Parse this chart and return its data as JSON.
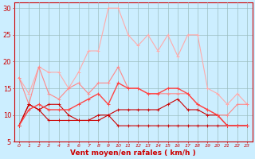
{
  "x": [
    0,
    1,
    2,
    3,
    4,
    5,
    6,
    7,
    8,
    9,
    10,
    11,
    12,
    13,
    14,
    15,
    16,
    17,
    18,
    19,
    20,
    21,
    22,
    23
  ],
  "line_rafales": [
    17,
    14,
    19,
    18,
    18,
    15,
    18,
    22,
    22,
    30,
    30,
    25,
    23,
    25,
    22,
    25,
    21,
    25,
    25,
    15,
    14,
    12,
    14,
    12
  ],
  "line_moyen1": [
    17,
    12,
    19,
    14,
    13,
    15,
    16,
    14,
    16,
    16,
    19,
    15,
    15,
    14,
    14,
    14,
    14,
    14,
    12,
    11,
    10,
    10,
    12,
    12
  ],
  "line_moyen2": [
    8,
    12,
    11,
    9,
    9,
    9,
    9,
    9,
    9,
    10,
    11,
    11,
    11,
    11,
    11,
    12,
    13,
    11,
    11,
    10,
    10,
    8,
    8,
    8
  ],
  "line_moyen3": [
    8,
    12,
    11,
    12,
    12,
    10,
    9,
    9,
    10,
    10,
    8,
    8,
    8,
    8,
    8,
    8,
    8,
    8,
    8,
    8,
    8,
    8,
    8,
    8
  ],
  "line_moyen4": [
    8,
    11,
    12,
    11,
    11,
    11,
    12,
    13,
    14,
    12,
    16,
    15,
    15,
    14,
    14,
    15,
    15,
    14,
    12,
    11,
    10,
    8,
    8,
    8
  ],
  "color_light_pink": "#ffaaaa",
  "color_medium_red": "#ff4444",
  "color_dark_red": "#cc0000",
  "color_pink": "#ff8888",
  "bg_color": "#cceeff",
  "grid_color": "#99bbbb",
  "xlabel": "Vent moyen/en rafales ( km/h )",
  "ylim": [
    5,
    31
  ],
  "xlim": [
    -0.5,
    23.5
  ],
  "yticks": [
    5,
    10,
    15,
    20,
    25,
    30
  ],
  "xticks": [
    0,
    1,
    2,
    3,
    4,
    5,
    6,
    7,
    8,
    9,
    10,
    11,
    12,
    13,
    14,
    15,
    16,
    17,
    18,
    19,
    20,
    21,
    22,
    23
  ],
  "tick_color": "#cc0000",
  "label_fontsize": 5.5,
  "xlabel_fontsize": 6.5
}
